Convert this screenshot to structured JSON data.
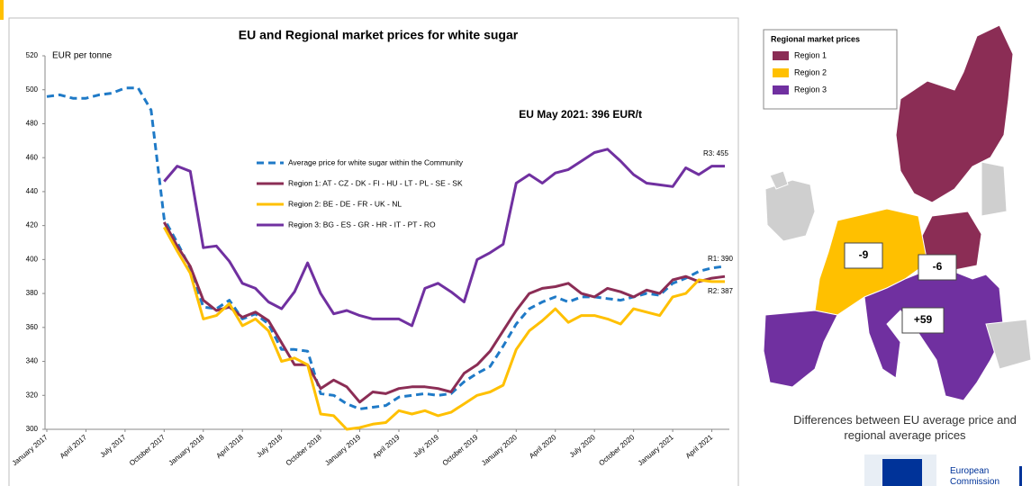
{
  "chart_data": {
    "type": "line",
    "title": "EU and Regional market prices for white sugar",
    "ylabel": "EUR per tonne",
    "categories": [
      "January 2017",
      null,
      null,
      "April 2017",
      null,
      null,
      "July 2017",
      null,
      null,
      "October 2017",
      null,
      null,
      "January 2018",
      null,
      null,
      "April 2018",
      null,
      null,
      "July 2018",
      null,
      null,
      "October 2018",
      null,
      null,
      "January 2019",
      null,
      null,
      "April 2019",
      null,
      null,
      "July 2019",
      null,
      null,
      "October 2019",
      null,
      null,
      "January 2020",
      null,
      null,
      "April 2020",
      null,
      null,
      "July 2020",
      null,
      null,
      "October 2020",
      null,
      null,
      "January 2021",
      null,
      null,
      "April 2021",
      null
    ],
    "series": [
      {
        "name": "Average price for white sugar within the Community",
        "color": "#1f7ac7",
        "dash": true,
        "values": [
          496,
          497,
          495,
          495,
          497,
          498,
          501,
          501,
          488,
          424,
          410,
          395,
          372,
          371,
          376,
          365,
          368,
          362,
          347,
          347,
          346,
          321,
          320,
          315,
          312,
          313,
          314,
          319,
          320,
          321,
          320,
          321,
          328,
          333,
          337,
          349,
          362,
          371,
          375,
          378,
          375,
          378,
          378,
          377,
          376,
          378,
          380,
          379,
          386,
          389,
          393,
          395,
          396
        ]
      },
      {
        "name": "Region 1: AT - CZ - DK - FI - HU - LT - PL - SE - SK",
        "color": "#8b2d55",
        "dash": false,
        "values": [
          null,
          null,
          null,
          null,
          null,
          null,
          null,
          null,
          null,
          422,
          408,
          396,
          376,
          370,
          372,
          366,
          369,
          364,
          351,
          338,
          338,
          324,
          329,
          325,
          316,
          322,
          321,
          324,
          325,
          325,
          324,
          322,
          333,
          338,
          346,
          358,
          370,
          380,
          383,
          384,
          386,
          380,
          378,
          383,
          381,
          378,
          382,
          380,
          388,
          390,
          387,
          389,
          390
        ]
      },
      {
        "name": "Region 2: BE - DE - FR - UK - NL",
        "color": "#ffc000",
        "dash": false,
        "values": [
          null,
          null,
          null,
          null,
          null,
          null,
          null,
          null,
          null,
          419,
          405,
          392,
          365,
          367,
          374,
          361,
          365,
          358,
          340,
          342,
          338,
          309,
          308,
          300,
          301,
          303,
          304,
          311,
          309,
          311,
          308,
          310,
          315,
          320,
          322,
          326,
          347,
          358,
          364,
          371,
          363,
          367,
          367,
          365,
          362,
          371,
          369,
          367,
          378,
          380,
          388,
          387,
          387
        ]
      },
      {
        "name": "Region 3: BG - ES - GR - HR - IT - PT - RO",
        "color": "#7030a0",
        "dash": false,
        "values": [
          null,
          null,
          null,
          null,
          null,
          null,
          null,
          null,
          null,
          446,
          455,
          452,
          407,
          408,
          399,
          386,
          383,
          375,
          371,
          381,
          398,
          380,
          368,
          370,
          367,
          365,
          365,
          365,
          361,
          383,
          386,
          381,
          375,
          400,
          404,
          409,
          445,
          450,
          445,
          451,
          453,
          458,
          463,
          465,
          458,
          450,
          445,
          444,
          443,
          454,
          450,
          455,
          455
        ]
      }
    ],
    "ylim": [
      300,
      520
    ],
    "yticks": [
      300,
      320,
      340,
      360,
      380,
      400,
      420,
      440,
      460,
      480,
      500,
      520
    ],
    "grid": false,
    "annotations": [
      "EU May 2021: 396 EUR/t",
      "R3: 455",
      "R1: 390",
      "R2: 387"
    ]
  },
  "map": {
    "legend_title": "Regional market prices",
    "legend": [
      {
        "label": "Region 1",
        "color": "#8b2d55"
      },
      {
        "label": "Region 2",
        "color": "#ffc000"
      },
      {
        "label": "Region 3",
        "color": "#7030a0"
      }
    ],
    "labels": [
      "-9",
      "-6",
      "+59"
    ],
    "caption": "Differences between EU average price and regional average prices"
  },
  "footer": {
    "logo_text": "European Commission"
  }
}
